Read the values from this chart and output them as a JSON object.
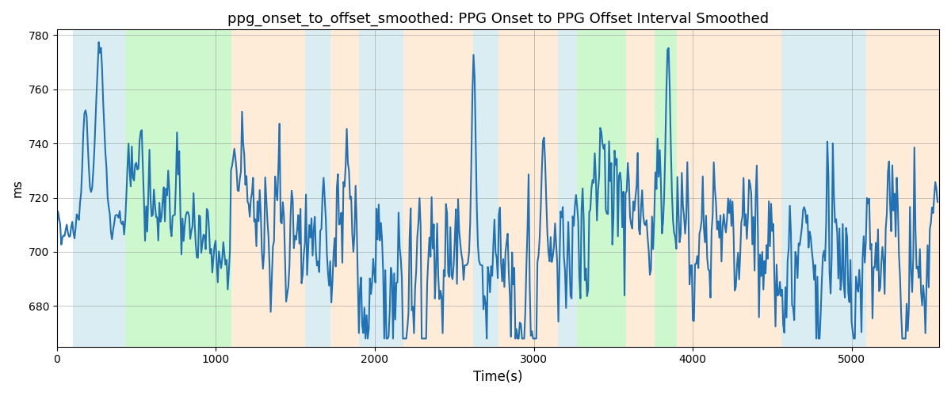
{
  "title": "ppg_onset_to_offset_smoothed: PPG Onset to PPG Offset Interval Smoothed",
  "xlabel": "Time(s)",
  "ylabel": "ms",
  "ylim": [
    665,
    782
  ],
  "xlim": [
    0,
    5550
  ],
  "line_color": "#2171b5",
  "line_width": 1.5,
  "shaded_regions": [
    {
      "xmin": 100,
      "xmax": 430,
      "color": "#add8e6",
      "alpha": 0.45
    },
    {
      "xmin": 430,
      "xmax": 1100,
      "color": "#90ee90",
      "alpha": 0.45
    },
    {
      "xmin": 1100,
      "xmax": 1560,
      "color": "#ffd7aa",
      "alpha": 0.45
    },
    {
      "xmin": 1560,
      "xmax": 1720,
      "color": "#add8e6",
      "alpha": 0.45
    },
    {
      "xmin": 1720,
      "xmax": 1900,
      "color": "#ffd7aa",
      "alpha": 0.45
    },
    {
      "xmin": 1900,
      "xmax": 2180,
      "color": "#add8e6",
      "alpha": 0.45
    },
    {
      "xmin": 2180,
      "xmax": 2620,
      "color": "#ffd7aa",
      "alpha": 0.45
    },
    {
      "xmin": 2620,
      "xmax": 2780,
      "color": "#add8e6",
      "alpha": 0.45
    },
    {
      "xmin": 2780,
      "xmax": 3150,
      "color": "#ffd7aa",
      "alpha": 0.45
    },
    {
      "xmin": 3150,
      "xmax": 3270,
      "color": "#add8e6",
      "alpha": 0.45
    },
    {
      "xmin": 3270,
      "xmax": 3580,
      "color": "#90ee90",
      "alpha": 0.45
    },
    {
      "xmin": 3580,
      "xmax": 3760,
      "color": "#ffd7aa",
      "alpha": 0.45
    },
    {
      "xmin": 3760,
      "xmax": 3900,
      "color": "#90ee90",
      "alpha": 0.45
    },
    {
      "xmin": 3900,
      "xmax": 4560,
      "color": "#ffd7aa",
      "alpha": 0.45
    },
    {
      "xmin": 4560,
      "xmax": 5090,
      "color": "#add8e6",
      "alpha": 0.45
    },
    {
      "xmin": 5090,
      "xmax": 5550,
      "color": "#ffd7aa",
      "alpha": 0.45
    }
  ],
  "yticks": [
    680,
    700,
    720,
    740,
    760,
    780
  ],
  "xticks": [
    0,
    1000,
    2000,
    3000,
    4000,
    5000
  ],
  "grid_color": "gray",
  "grid_alpha": 0.6,
  "grid_linewidth": 0.5,
  "figsize": [
    12.0,
    5.0
  ],
  "dpi": 100
}
